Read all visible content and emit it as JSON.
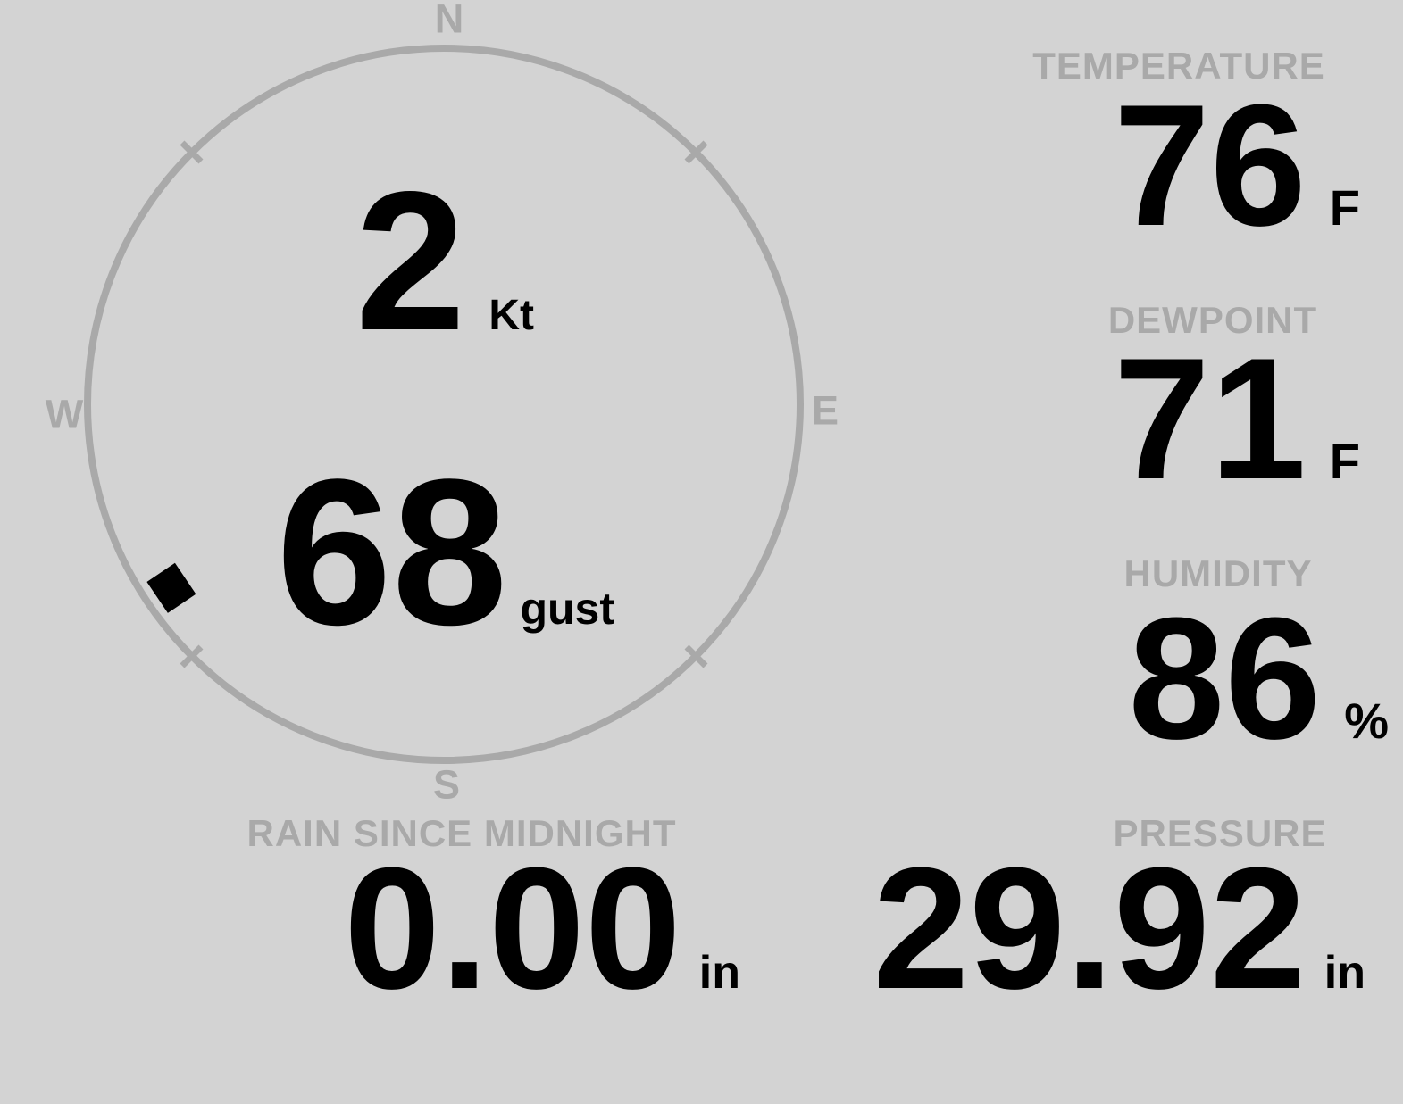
{
  "theme": {
    "background": "#d3d3d3",
    "secondary_gray": "#a9a9a9",
    "value_black": "#000000"
  },
  "wind": {
    "speed": "2",
    "speed_unit": "Kt",
    "gust": "68",
    "gust_unit": "gust",
    "direction_degrees": 236,
    "compass": {
      "north": "N",
      "east": "E",
      "south": "S",
      "west": "W"
    }
  },
  "metrics": {
    "temperature": {
      "label": "TEMPERATURE",
      "value": "76",
      "unit": "F"
    },
    "dewpoint": {
      "label": "DEWPOINT",
      "value": "71",
      "unit": "F"
    },
    "humidity": {
      "label": "HUMIDITY",
      "value": "86",
      "unit": "%"
    },
    "rain": {
      "label": "RAIN SINCE MIDNIGHT",
      "value": "0.00",
      "unit": "in"
    },
    "pressure": {
      "label": "PRESSURE",
      "value": "29.92",
      "unit": "in"
    }
  }
}
